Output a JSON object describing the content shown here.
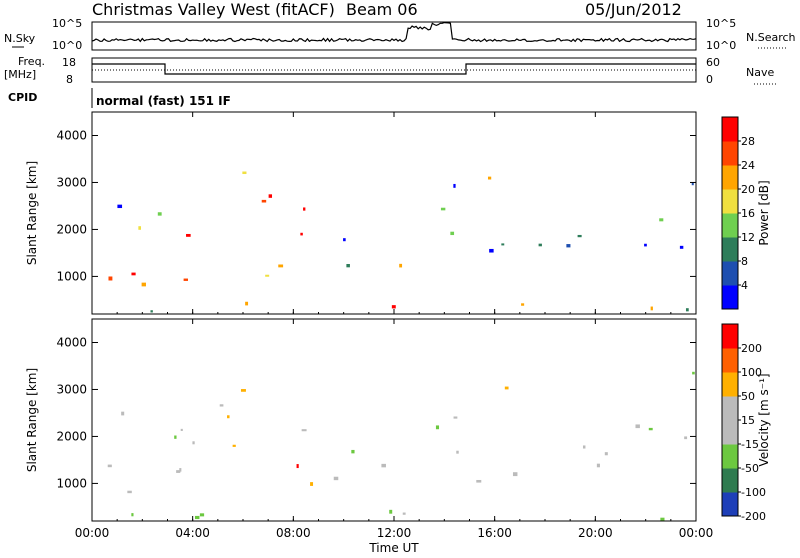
{
  "header": {
    "title": "Christmas Valley West (fitACF)",
    "beam": "Beam 06",
    "date": "05/Jun/2012"
  },
  "nsky_panel": {
    "left_label": "N.Sky",
    "right_label": "N.Search",
    "left_ticks": [
      "10^5",
      "10^0"
    ],
    "right_ticks": [
      "10^5",
      "10^0"
    ]
  },
  "freq_panel": {
    "left_label": "Freq.",
    "left_unit": "[MHz]",
    "right_label": "Nave",
    "left_ticks": [
      "18",
      "8"
    ],
    "right_ticks": [
      "60",
      "0"
    ]
  },
  "cpid": {
    "label": "CPID",
    "mode": "normal (fast) 151 IF"
  },
  "x_axis": {
    "label": "Time UT",
    "ticks": [
      "00:00",
      "04:00",
      "08:00",
      "12:00",
      "16:00",
      "20:00",
      "00:00"
    ]
  },
  "chart_data": [
    {
      "type": "heatmap",
      "ylabel": "Slant Range [km]",
      "yticks": [
        "1000",
        "2000",
        "3000",
        "4000"
      ],
      "ylim": [
        200,
        4500
      ],
      "colorbar_label": "Power [dB]",
      "colorbar_ticks": [
        "4",
        "8",
        "12",
        "16",
        "20",
        "24",
        "28"
      ],
      "colorbar_range": [
        0,
        30
      ],
      "colors": [
        "#0000ff",
        "#1e4fb0",
        "#2e7d5a",
        "#6fcf50",
        "#f0e040",
        "#ffa500",
        "#ff4500",
        "#ff0000"
      ]
    },
    {
      "type": "heatmap",
      "ylabel": "Slant Range [km]",
      "yticks": [
        "1000",
        "2000",
        "3000",
        "4000"
      ],
      "ylim": [
        200,
        4500
      ],
      "colorbar_label": "Velocity [m s⁻¹]",
      "colorbar_ticks": [
        "200",
        "100",
        "50",
        "15",
        "-15",
        "-50",
        "-100",
        "-200"
      ],
      "colorbar_range": [
        -250,
        250
      ],
      "colors": [
        "#1e3fb8",
        "#2f7b50",
        "#6cc840",
        "#bbbbbb",
        "#bbbbbb",
        "#ffb000",
        "#ff6000",
        "#ff0000"
      ]
    }
  ]
}
